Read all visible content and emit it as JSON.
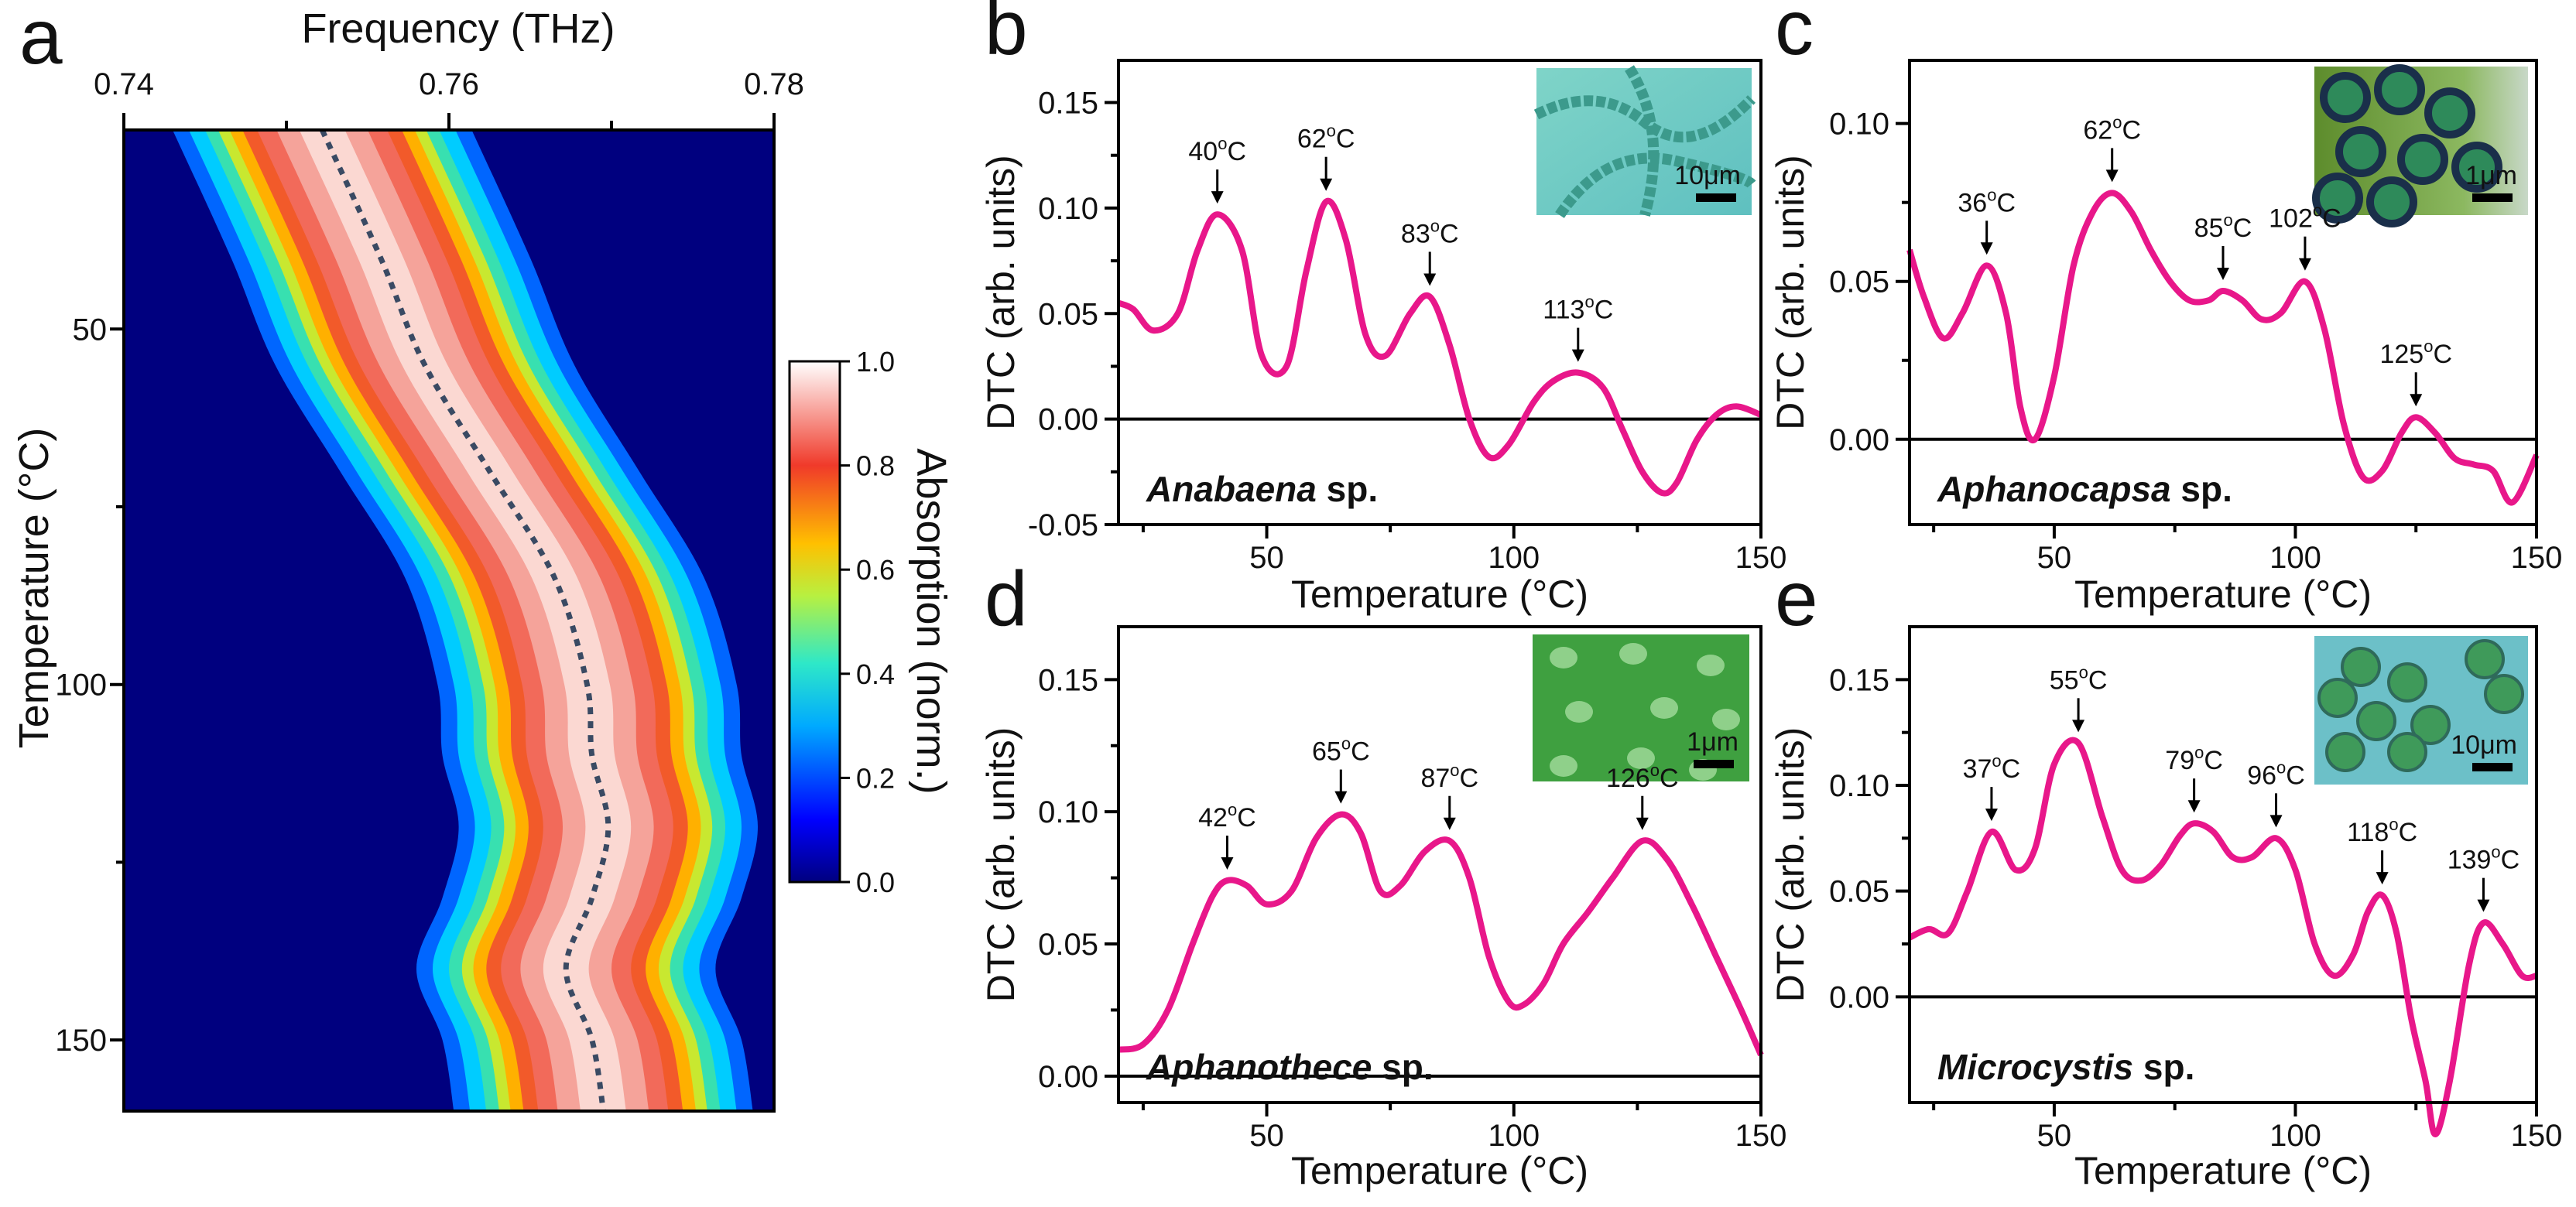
{
  "colors": {
    "curve": "#e8178a",
    "dotted": "#3a4a63",
    "cmap_low": "#00007f",
    "baseline": "#000000"
  },
  "chart_data": [
    {
      "panel": "a",
      "type": "heatmap",
      "top_xlabel": "Frequency (THz)",
      "ylabel": "Temperature (°C)",
      "xlim": [
        0.74,
        0.78
      ],
      "ylim": [
        22,
        160
      ],
      "x_ticks": [
        0.74,
        0.76,
        0.78
      ],
      "x_tick_labels": [
        "0.74",
        "0.76",
        "0.78"
      ],
      "y_ticks": [
        50,
        100,
        150
      ],
      "y_tick_labels": [
        "50",
        "100",
        "150"
      ],
      "colorbar": {
        "label": "Absorption (norm.)",
        "ticks": [
          0.0,
          0.2,
          0.4,
          0.6,
          0.8,
          1.0
        ],
        "tick_labels": [
          "0.0",
          "0.2",
          "0.4",
          "0.6",
          "0.8",
          "1.0"
        ]
      },
      "peak_center": [
        {
          "t": 22,
          "f": 0.7522
        },
        {
          "t": 40,
          "f": 0.7558
        },
        {
          "t": 55,
          "f": 0.7585
        },
        {
          "t": 70,
          "f": 0.7625
        },
        {
          "t": 85,
          "f": 0.7665
        },
        {
          "t": 100,
          "f": 0.7685
        },
        {
          "t": 110,
          "f": 0.7688
        },
        {
          "t": 120,
          "f": 0.7698
        },
        {
          "t": 130,
          "f": 0.7688
        },
        {
          "t": 140,
          "f": 0.7672
        },
        {
          "t": 150,
          "f": 0.7688
        },
        {
          "t": 160,
          "f": 0.7695
        }
      ]
    },
    {
      "panel": "b",
      "type": "line",
      "species_italic": "Anabaena",
      "species_suffix": " sp.",
      "xlabel": "Temperature (°C)",
      "ylabel": "DTC (arb. units)",
      "xlim": [
        20,
        150
      ],
      "ylim": [
        -0.05,
        0.17
      ],
      "x_ticks": [
        50,
        100,
        150
      ],
      "x_tick_labels": [
        "50",
        "100",
        "150"
      ],
      "y_ticks": [
        -0.05,
        0.0,
        0.05,
        0.1,
        0.15
      ],
      "y_tick_labels": [
        "-0.05",
        "0.00",
        "0.05",
        "0.10",
        "0.15"
      ],
      "scale_label": "10μm",
      "x": [
        20,
        23,
        27,
        32,
        36,
        40,
        45,
        49,
        54,
        58,
        62,
        66,
        70,
        74,
        79,
        83,
        87,
        91,
        95,
        99,
        104,
        108,
        113,
        118,
        122,
        126,
        130,
        133,
        137,
        141,
        145,
        150
      ],
      "y": [
        0.055,
        0.052,
        0.042,
        0.05,
        0.08,
        0.097,
        0.08,
        0.03,
        0.025,
        0.07,
        0.103,
        0.085,
        0.04,
        0.03,
        0.05,
        0.058,
        0.035,
        0.0,
        -0.018,
        -0.012,
        0.008,
        0.018,
        0.022,
        0.015,
        -0.005,
        -0.025,
        -0.035,
        -0.03,
        -0.01,
        0.002,
        0.006,
        0.002
      ],
      "peaks": [
        {
          "x": 40,
          "y": 0.097,
          "label": "40",
          "unit": "oC"
        },
        {
          "x": 62,
          "y": 0.103,
          "label": "62",
          "unit": "oC"
        },
        {
          "x": 83,
          "y": 0.058,
          "label": "83",
          "unit": "oC"
        },
        {
          "x": 113,
          "y": 0.022,
          "label": "113",
          "unit": "oC"
        }
      ]
    },
    {
      "panel": "c",
      "type": "line",
      "species_italic": "Aphanocapsa",
      "species_suffix": " sp.",
      "xlabel": "Temperature (°C)",
      "ylabel": "DTC (arb. units)",
      "xlim": [
        20,
        150
      ],
      "ylim": [
        -0.027,
        0.12
      ],
      "x_ticks": [
        50,
        100,
        150
      ],
      "x_tick_labels": [
        "50",
        "100",
        "150"
      ],
      "y_ticks": [
        0.0,
        0.05,
        0.1
      ],
      "y_tick_labels": [
        "0.00",
        "0.05",
        "0.10"
      ],
      "scale_label": "1μm",
      "x": [
        20,
        23,
        27,
        31,
        36,
        40,
        43,
        46,
        50,
        54,
        58,
        62,
        66,
        70,
        74,
        78,
        82,
        85,
        89,
        93,
        97,
        102,
        106,
        110,
        114,
        118,
        122,
        125,
        129,
        133,
        137,
        141,
        145,
        150
      ],
      "y": [
        0.06,
        0.045,
        0.032,
        0.04,
        0.055,
        0.04,
        0.01,
        0.0,
        0.02,
        0.055,
        0.072,
        0.078,
        0.072,
        0.06,
        0.05,
        0.044,
        0.044,
        0.047,
        0.044,
        0.038,
        0.04,
        0.05,
        0.035,
        0.005,
        -0.012,
        -0.01,
        0.002,
        0.007,
        0.002,
        -0.006,
        -0.008,
        -0.01,
        -0.02,
        -0.005
      ],
      "peaks": [
        {
          "x": 36,
          "y": 0.055,
          "label": "36",
          "unit": "oC"
        },
        {
          "x": 62,
          "y": 0.078,
          "label": "62",
          "unit": "oC"
        },
        {
          "x": 85,
          "y": 0.047,
          "label": "85",
          "unit": "oC"
        },
        {
          "x": 102,
          "y": 0.05,
          "label": "102",
          "unit": "oC"
        },
        {
          "x": 125,
          "y": 0.007,
          "label": "125",
          "unit": "oC"
        }
      ]
    },
    {
      "panel": "d",
      "type": "line",
      "species_italic": "Aphanothece",
      "species_suffix": " sp.",
      "xlabel": "Temperature (°C)",
      "ylabel": "DTC (arb. units)",
      "xlim": [
        20,
        150
      ],
      "ylim": [
        -0.01,
        0.17
      ],
      "x_ticks": [
        50,
        100,
        150
      ],
      "x_tick_labels": [
        "50",
        "100",
        "150"
      ],
      "y_ticks": [
        0.0,
        0.05,
        0.1,
        0.15
      ],
      "y_tick_labels": [
        "0.00",
        "0.05",
        "0.10",
        "0.15"
      ],
      "scale_label": "1μm",
      "x": [
        20,
        25,
        30,
        35,
        39,
        42,
        46,
        50,
        55,
        60,
        65,
        69,
        73,
        77,
        82,
        87,
        91,
        95,
        99,
        102,
        106,
        110,
        115,
        120,
        126,
        131,
        136,
        141,
        146,
        150
      ],
      "y": [
        0.01,
        0.012,
        0.025,
        0.05,
        0.068,
        0.074,
        0.072,
        0.065,
        0.07,
        0.09,
        0.099,
        0.092,
        0.07,
        0.072,
        0.085,
        0.089,
        0.075,
        0.045,
        0.028,
        0.027,
        0.035,
        0.05,
        0.062,
        0.075,
        0.089,
        0.082,
        0.065,
        0.045,
        0.025,
        0.008
      ],
      "peaks": [
        {
          "x": 42,
          "y": 0.074,
          "label": "42",
          "unit": "oC"
        },
        {
          "x": 65,
          "y": 0.099,
          "label": "65",
          "unit": "oC"
        },
        {
          "x": 87,
          "y": 0.089,
          "label": "87",
          "unit": "oC"
        },
        {
          "x": 126,
          "y": 0.089,
          "label": "126",
          "unit": "oC"
        }
      ]
    },
    {
      "panel": "e",
      "type": "line",
      "species_italic": "Microcystis",
      "species_suffix": " sp.",
      "xlabel": "Temperature (°C)",
      "ylabel": "DTC (arb. units)",
      "xlim": [
        20,
        150
      ],
      "ylim": [
        -0.05,
        0.175
      ],
      "x_ticks": [
        50,
        100,
        150
      ],
      "x_tick_labels": [
        "50",
        "100",
        "150"
      ],
      "y_ticks": [
        0.0,
        0.05,
        0.1,
        0.15
      ],
      "y_tick_labels": [
        "0.00",
        "0.05",
        "0.10",
        "0.15"
      ],
      "scale_label": "10μm",
      "x": [
        20,
        24,
        28,
        32,
        37,
        42,
        46,
        50,
        55,
        60,
        64,
        68,
        72,
        76,
        79,
        83,
        87,
        91,
        96,
        100,
        104,
        108,
        112,
        115,
        118,
        121,
        124,
        127,
        129,
        132,
        136,
        139,
        143,
        147,
        150
      ],
      "y": [
        0.028,
        0.032,
        0.03,
        0.05,
        0.078,
        0.06,
        0.07,
        0.11,
        0.12,
        0.085,
        0.06,
        0.055,
        0.062,
        0.076,
        0.082,
        0.078,
        0.066,
        0.066,
        0.075,
        0.06,
        0.025,
        0.01,
        0.02,
        0.04,
        0.048,
        0.03,
        -0.01,
        -0.04,
        -0.065,
        -0.04,
        0.015,
        0.035,
        0.025,
        0.01,
        0.01
      ],
      "peaks": [
        {
          "x": 37,
          "y": 0.078,
          "label": "37",
          "unit": "oC"
        },
        {
          "x": 55,
          "y": 0.12,
          "label": "55",
          "unit": "oC"
        },
        {
          "x": 79,
          "y": 0.082,
          "label": "79",
          "unit": "oC"
        },
        {
          "x": 96,
          "y": 0.075,
          "label": "96",
          "unit": "oC"
        },
        {
          "x": 118,
          "y": 0.048,
          "label": "118",
          "unit": "oC"
        },
        {
          "x": 139,
          "y": 0.035,
          "label": "139",
          "unit": "oC"
        }
      ]
    }
  ]
}
